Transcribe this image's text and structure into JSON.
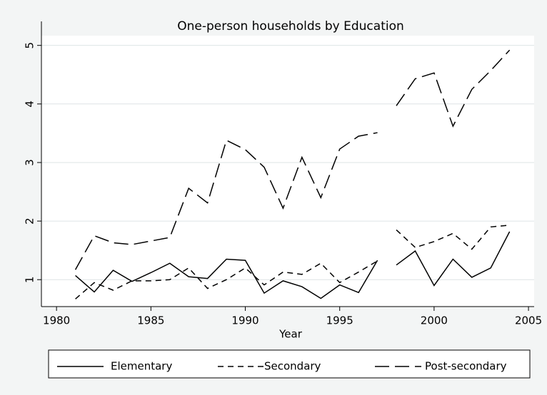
{
  "chart_data": {
    "type": "line",
    "title": "One-person households by Education",
    "x_label": "Year",
    "x": [
      1981,
      1982,
      1983,
      1984,
      1985,
      1986,
      1987,
      1988,
      1989,
      1990,
      1991,
      1992,
      1993,
      1994,
      1995,
      1996,
      1997,
      null,
      1998,
      1999,
      2000,
      2001,
      2002,
      2003,
      2004
    ],
    "series": [
      {
        "name": "Elementary",
        "color": "#000000",
        "dash": "solid",
        "values": [
          1.07,
          0.79,
          1.16,
          0.97,
          1.12,
          1.28,
          1.05,
          1.02,
          1.35,
          1.33,
          0.77,
          0.98,
          0.88,
          0.68,
          0.91,
          0.78,
          1.33,
          null,
          1.25,
          1.49,
          0.9,
          1.35,
          1.04,
          1.2,
          1.82
        ]
      },
      {
        "name": "Secondary",
        "color": "#000000",
        "dash": "short",
        "values": [
          0.67,
          0.95,
          0.82,
          0.98,
          0.98,
          1.0,
          1.2,
          0.85,
          1.0,
          1.2,
          0.91,
          1.13,
          1.09,
          1.28,
          0.95,
          1.13,
          1.32,
          null,
          1.85,
          1.55,
          1.65,
          1.79,
          1.52,
          1.9,
          1.93
        ]
      },
      {
        "name": "Post-secondary",
        "color": "#000000",
        "dash": "long",
        "values": [
          1.17,
          1.75,
          1.63,
          1.6,
          1.66,
          1.72,
          2.56,
          2.31,
          3.38,
          3.22,
          2.92,
          2.22,
          3.09,
          2.4,
          3.23,
          3.45,
          3.51,
          null,
          3.97,
          4.43,
          4.53,
          3.62,
          4.25,
          4.57,
          4.92
        ]
      }
    ],
    "xlim": [
      1979.2,
      2005.3
    ],
    "xticks": [
      1980,
      1985,
      1990,
      1995,
      2000,
      2005
    ],
    "ylim": [
      0.54,
      5.41
    ],
    "yticks": [
      1,
      2,
      3,
      4,
      5
    ],
    "grid": true,
    "legend": "bottom"
  }
}
